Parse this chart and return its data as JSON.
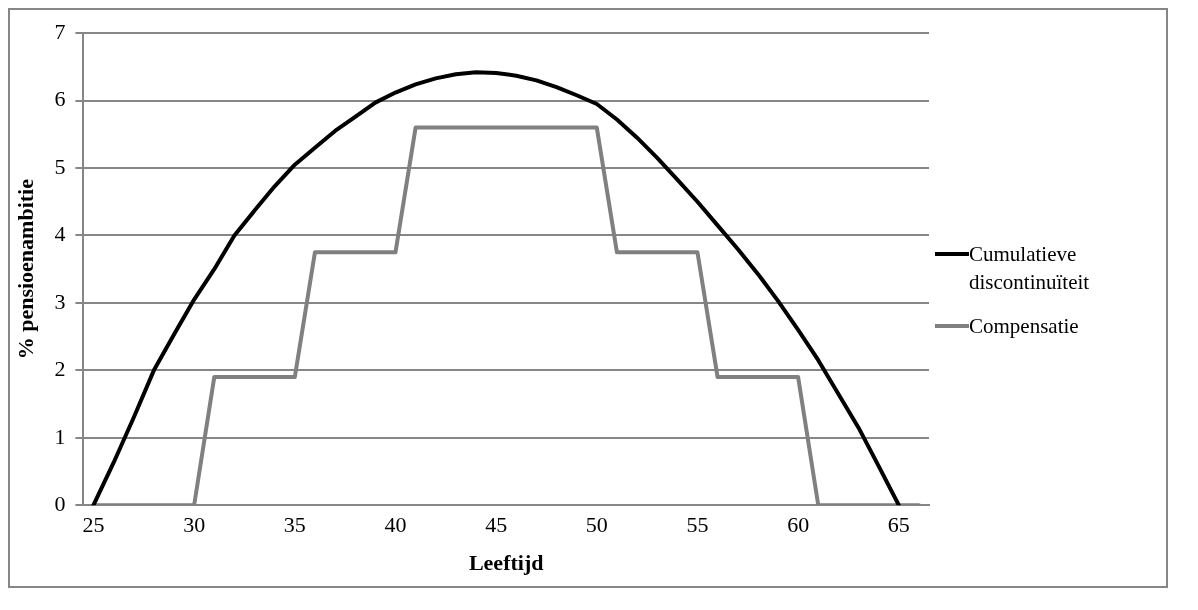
{
  "chart_data": {
    "type": "line",
    "xlabel": "Leeftijd",
    "ylabel": "% pensioenambitie",
    "categories": [
      "25",
      null,
      null,
      null,
      null,
      "30",
      null,
      null,
      null,
      null,
      "35",
      null,
      null,
      null,
      null,
      "40",
      null,
      null,
      null,
      null,
      "45",
      null,
      null,
      null,
      null,
      "50",
      null,
      null,
      null,
      null,
      "55",
      null,
      null,
      null,
      null,
      "60",
      null,
      null,
      null,
      null,
      "65",
      null
    ],
    "series": [
      {
        "name": "Cumulatieve discontinuïteit",
        "color": "#000000",
        "values": [
          0,
          0.63,
          1.3,
          2.0,
          2.53,
          3.05,
          3.5,
          4.0,
          4.37,
          4.73,
          5.05,
          5.3,
          5.55,
          5.76,
          5.97,
          6.12,
          6.24,
          6.33,
          6.39,
          6.42,
          6.41,
          6.37,
          6.3,
          6.2,
          6.08,
          5.95,
          5.72,
          5.45,
          5.15,
          4.83,
          4.5,
          4.15,
          3.8,
          3.43,
          3.03,
          2.6,
          2.15,
          1.65,
          1.15,
          0.58,
          0,
          null
        ]
      },
      {
        "name": "Compensatie",
        "color": "#808080",
        "values": [
          0,
          0,
          0,
          0,
          0,
          0,
          1.9,
          1.9,
          1.9,
          1.9,
          1.9,
          3.75,
          3.75,
          3.75,
          3.75,
          3.75,
          5.6,
          5.6,
          5.6,
          5.6,
          5.6,
          5.6,
          5.6,
          5.6,
          5.6,
          5.6,
          3.75,
          3.75,
          3.75,
          3.75,
          3.75,
          1.9,
          1.9,
          1.9,
          1.9,
          1.9,
          0,
          0,
          0,
          0,
          0,
          0
        ]
      }
    ],
    "ylim": [
      0,
      7
    ],
    "yticks": [
      0,
      1,
      2,
      3,
      4,
      5,
      6,
      7
    ],
    "grid": "y",
    "legend": "right",
    "marker": "none",
    "line_style": "solid"
  }
}
